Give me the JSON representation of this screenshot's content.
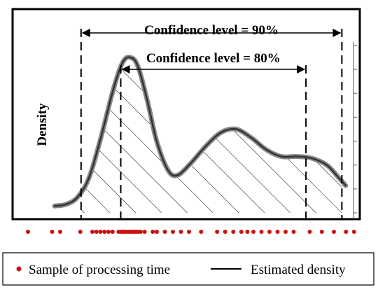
{
  "chart_data": {
    "type": "area",
    "ylabel": "Density",
    "density_series_name": "Estimated density",
    "sample_series_name": "Sample of processing time",
    "density_curve": [
      [
        0.0,
        0.04
      ],
      [
        0.03,
        0.05
      ],
      [
        0.06,
        0.09
      ],
      [
        0.09,
        0.2
      ],
      [
        0.12,
        0.42
      ],
      [
        0.155,
        0.72
      ],
      [
        0.18,
        0.88
      ],
      [
        0.2,
        0.91
      ],
      [
        0.22,
        0.86
      ],
      [
        0.245,
        0.66
      ],
      [
        0.27,
        0.42
      ],
      [
        0.3,
        0.25
      ],
      [
        0.325,
        0.22
      ],
      [
        0.36,
        0.29
      ],
      [
        0.4,
        0.39
      ],
      [
        0.44,
        0.47
      ],
      [
        0.48,
        0.49
      ],
      [
        0.52,
        0.44
      ],
      [
        0.56,
        0.37
      ],
      [
        0.6,
        0.33
      ],
      [
        0.64,
        0.33
      ],
      [
        0.68,
        0.32
      ],
      [
        0.72,
        0.28
      ],
      [
        0.75,
        0.21
      ],
      [
        0.77,
        0.16
      ]
    ],
    "samples": [
      0.0,
      0.06,
      0.08,
      0.13,
      0.16,
      0.17,
      0.18,
      0.19,
      0.2,
      0.21,
      0.225,
      0.23,
      0.235,
      0.24,
      0.245,
      0.25,
      0.255,
      0.26,
      0.265,
      0.27,
      0.275,
      0.28,
      0.29,
      0.31,
      0.32,
      0.34,
      0.36,
      0.38,
      0.4,
      0.43,
      0.47,
      0.49,
      0.51,
      0.53,
      0.545,
      0.56,
      0.58,
      0.6,
      0.62,
      0.64,
      0.66,
      0.7,
      0.73,
      0.76,
      0.79,
      0.81
    ],
    "confidence_intervals": [
      {
        "label": "Confidence level = 90%",
        "lower": 0.07,
        "upper": 0.76
      },
      {
        "label": "Confidence level = 80%",
        "lower": 0.175,
        "upper": 0.665
      }
    ],
    "xlim": [
      0.0,
      0.8
    ],
    "ylim": [
      0.0,
      1.0
    ],
    "grid": false,
    "legend_position": "bottom"
  },
  "legend": {
    "sample_label": "Sample of processing time",
    "density_label": "Estimated density"
  },
  "colors": {
    "sample_dot": "#cc1111",
    "density_line": "#333333",
    "density_glow": "#8a8a8a",
    "hatch": "#000000"
  }
}
